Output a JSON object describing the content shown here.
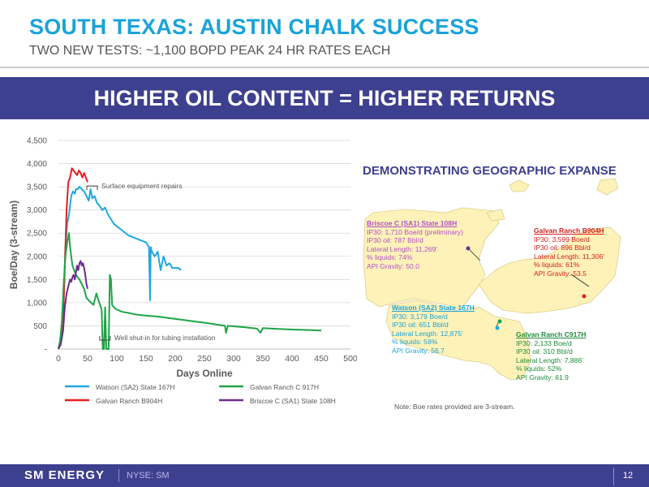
{
  "header": {
    "title": "SOUTH TEXAS: AUSTIN CHALK SUCCESS",
    "subtitle": "TWO NEW TESTS: ~1,100 BOPD PEAK 24 HR RATES EACH"
  },
  "banner": {
    "text": "HIGHER OIL CONTENT = HIGHER RETURNS"
  },
  "colors": {
    "accent_blue": "#1aa3d9",
    "navy": "#3d3f8f",
    "watson": "#1fa8e0",
    "galvan_b": "#e0201f",
    "galvan_c": "#1ea447",
    "briscoe": "#6a2c91"
  },
  "chart_data": {
    "type": "line",
    "xlabel": "Days Online",
    "ylabel": "Boe/Day (3-stream)",
    "xlim": [
      0,
      500
    ],
    "ylim": [
      0,
      4500
    ],
    "x_ticks": [
      0,
      50,
      100,
      150,
      200,
      250,
      300,
      350,
      400,
      450,
      500
    ],
    "x_tick_labels": [
      "0",
      "50",
      "100",
      "150",
      "200",
      "250",
      "300",
      "350",
      "400",
      "450",
      "500"
    ],
    "y_ticks": [
      0,
      500,
      1000,
      1500,
      2000,
      2500,
      3000,
      3500,
      4000,
      4500
    ],
    "y_tick_labels": [
      "-",
      "500",
      "1,000",
      "1,500",
      "2,000",
      "2,500",
      "3,000",
      "3,500",
      "4,000",
      "4,500"
    ],
    "grid": "horizontal",
    "legend_position": "bottom",
    "annotations": [
      {
        "text": "Surface equipment repairs",
        "x": 57,
        "y": 3500
      },
      {
        "text": "Well shut-in for tubing installation",
        "x": 79,
        "y": 0
      }
    ],
    "series": [
      {
        "name": "Watson (SA2) State 167H",
        "color": "#1fa8e0",
        "x": [
          0,
          3,
          6,
          8,
          10,
          12,
          15,
          18,
          20,
          22,
          25,
          28,
          30,
          33,
          36,
          40,
          44,
          48,
          52,
          55,
          58,
          62,
          66,
          70,
          75,
          80,
          85,
          90,
          95,
          100,
          110,
          120,
          130,
          140,
          150,
          155,
          157,
          158,
          160,
          165,
          170,
          175,
          180,
          185,
          190,
          195,
          200,
          205,
          210
        ],
        "y": [
          0,
          100,
          300,
          700,
          1400,
          2200,
          2700,
          2900,
          3100,
          3300,
          3400,
          3350,
          3450,
          3450,
          3500,
          3450,
          3400,
          3300,
          3200,
          3450,
          3250,
          3300,
          3150,
          3100,
          3000,
          3050,
          2900,
          2800,
          2700,
          2650,
          2550,
          2450,
          2400,
          2350,
          2300,
          2200,
          1050,
          2200,
          2100,
          2000,
          2100,
          1700,
          2000,
          1800,
          1850,
          1750,
          1750,
          1750,
          1700
        ]
      },
      {
        "name": "Galvan Ranch B904H",
        "color": "#e0201f",
        "x": [
          0,
          4,
          8,
          11,
          14,
          17,
          20,
          23,
          26,
          29,
          32,
          35,
          38,
          41,
          44,
          47,
          50
        ],
        "y": [
          0,
          200,
          600,
          1800,
          3000,
          3600,
          3700,
          3900,
          3850,
          3800,
          3750,
          3850,
          3800,
          3700,
          3800,
          3700,
          3600
        ]
      },
      {
        "name": "Galvan Ranch C 917H",
        "color": "#1ea447",
        "x": [
          0,
          3,
          6,
          9,
          12,
          15,
          18,
          20,
          22,
          24,
          27,
          30,
          33,
          36,
          40,
          44,
          48,
          52,
          56,
          60,
          65,
          70,
          74,
          76,
          78,
          80,
          82,
          84,
          86,
          88,
          90,
          92,
          95,
          100,
          110,
          120,
          130,
          150,
          170,
          200,
          230,
          260,
          285,
          287,
          290,
          320,
          340,
          346,
          350,
          380,
          400,
          430,
          450
        ],
        "y": [
          0,
          200,
          600,
          1400,
          2000,
          2300,
          2500,
          2200,
          2000,
          1800,
          1700,
          1600,
          1550,
          1500,
          1400,
          1300,
          1100,
          1050,
          1000,
          950,
          1200,
          1000,
          850,
          0,
          0,
          900,
          0,
          0,
          0,
          1600,
          1500,
          950,
          900,
          850,
          800,
          780,
          750,
          720,
          700,
          650,
          600,
          550,
          500,
          350,
          500,
          470,
          440,
          350,
          450,
          430,
          420,
          410,
          400
        ]
      },
      {
        "name": "Briscoe C (SA1) State 108H",
        "color": "#6a2c91",
        "x": [
          0,
          4,
          8,
          11,
          14,
          17,
          20,
          22,
          24,
          26,
          28,
          30,
          32,
          34,
          36,
          38,
          40,
          42,
          44,
          46,
          48,
          50
        ],
        "y": [
          0,
          100,
          400,
          900,
          1200,
          1350,
          1500,
          1450,
          1550,
          1600,
          1500,
          1650,
          1800,
          1700,
          1850,
          1900,
          1800,
          1850,
          1750,
          1600,
          1400,
          1300
        ]
      }
    ]
  },
  "map": {
    "title": "DEMONSTRATING GEOGRAPHIC EXPANSE",
    "wells": [
      {
        "name": "Briscoe C (SA1) State 108H",
        "color": "#b04fd1",
        "ip30": "IP30: 1,710 Boe/d (preliminary)",
        "oil": "IP30 oil: 787 Bbl/d",
        "lateral": "Lateral Length: 11,269'",
        "liquids": "% liquids: 74%",
        "api": "API Gravity: 50.0"
      },
      {
        "name": "Galvan Ranch B904H",
        "color": "#d3201f",
        "ip30": "IP30: 3,599 Boe/d",
        "oil": "IP30 oil: 896 Bbl/d",
        "lateral": "Lateral Length: 11,306'",
        "liquids": "% liquids: 61%",
        "api": "API Gravity: 53.5"
      },
      {
        "name": "Watson (SA2) State 167H",
        "color": "#1aa3d9",
        "ip30": "IP30: 3,179 Boe/d",
        "oil": "IP30 oil: 651 Bbl/d",
        "lateral": "Lateral Length: 12,875'",
        "liquids": "% liquids: 58%",
        "api": "API Gravity: 56.7"
      },
      {
        "name": "Galvan Ranch C917H",
        "color": "#1e8c3a",
        "ip30": "IP30: 2,133 Boe/d",
        "oil": "IP30 oil: 310 Bbl/d",
        "lateral": "Lateral Length: 7,886'",
        "liquids": "% liquids: 52%",
        "api": "API Gravity: 61.9"
      }
    ],
    "note": "Note: Boe rates provided are 3-stream."
  },
  "footer": {
    "logo": "SM ENERGY",
    "ticker": "NYSE: SM",
    "page": "12"
  }
}
